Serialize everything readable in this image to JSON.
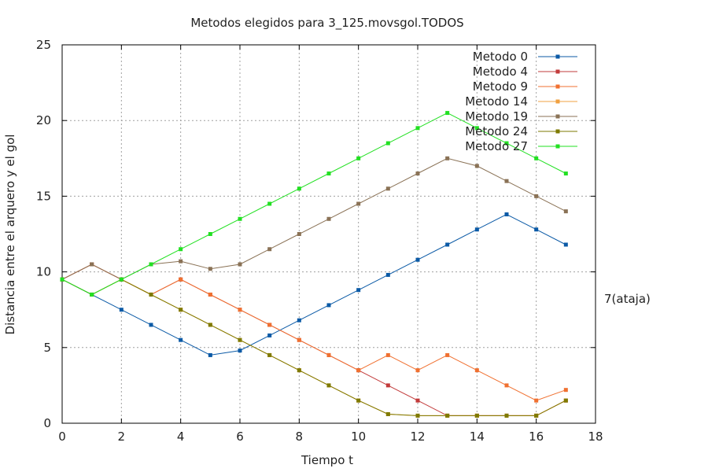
{
  "chart_data": {
    "type": "line",
    "title": "Metodos elegidos para 3_125.movsgol.TODOS",
    "xlabel": "Tiempo t",
    "ylabel": "Distancia entre el arquero y el gol",
    "xlim": [
      0,
      18
    ],
    "ylim": [
      0,
      25
    ],
    "xticks": [
      0,
      2,
      4,
      6,
      8,
      10,
      12,
      14,
      16,
      18
    ],
    "yticks": [
      0,
      5,
      10,
      15,
      20,
      25
    ],
    "grid": true,
    "legend_position": "top-right",
    "right_label": {
      "text": "7(ataja)",
      "y": 8.2
    },
    "series": [
      {
        "name": "Metodo 0",
        "color": "#0b5aa6",
        "x": [
          0,
          1,
          2,
          3,
          4,
          5,
          6,
          7,
          8,
          9,
          10,
          11,
          12,
          13,
          14,
          15,
          16,
          17
        ],
        "y": [
          9.5,
          8.5,
          7.5,
          6.5,
          5.5,
          4.5,
          4.8,
          5.8,
          6.8,
          7.8,
          8.8,
          9.8,
          10.8,
          11.8,
          12.8,
          13.8,
          12.8,
          11.8
        ]
      },
      {
        "name": "Metodo 4",
        "color": "#c23b3b",
        "x": [
          0,
          1,
          2,
          3,
          4,
          5,
          6,
          7,
          8,
          9,
          10,
          11,
          12,
          13,
          14,
          15,
          16,
          17
        ],
        "y": [
          9.5,
          10.5,
          9.5,
          8.5,
          9.5,
          8.5,
          7.5,
          6.5,
          5.5,
          4.5,
          3.5,
          2.5,
          1.5,
          0.5,
          0.5,
          0.5,
          0.5,
          1.5
        ]
      },
      {
        "name": "Metodo 9",
        "color": "#f07030",
        "x": [
          0,
          1,
          2,
          3,
          4,
          5,
          6,
          7,
          8,
          9,
          10,
          11,
          12,
          13,
          14,
          15,
          16,
          17
        ],
        "y": [
          9.5,
          10.5,
          9.5,
          8.5,
          9.5,
          8.5,
          7.5,
          6.5,
          5.5,
          4.5,
          3.5,
          4.5,
          3.5,
          4.5,
          3.5,
          2.5,
          1.5,
          2.2
        ]
      },
      {
        "name": "Metodo 14",
        "color": "#f0a040",
        "x": [
          0,
          1,
          2,
          3,
          4,
          5,
          6,
          7,
          8,
          9,
          10,
          11,
          12,
          13,
          14,
          15,
          16,
          17
        ],
        "y": [
          9.5,
          8.5,
          9.5,
          8.5,
          7.5,
          6.5,
          5.5,
          4.5,
          3.5,
          2.5,
          1.5,
          0.6,
          0.5,
          0.5,
          0.5,
          0.5,
          0.5,
          1.5
        ]
      },
      {
        "name": "Metodo 19",
        "color": "#8a7256",
        "x": [
          0,
          1,
          2,
          3,
          4,
          5,
          6,
          7,
          8,
          9,
          10,
          11,
          12,
          13,
          14,
          15,
          16,
          17
        ],
        "y": [
          9.5,
          10.5,
          9.5,
          10.5,
          10.7,
          10.2,
          10.5,
          11.5,
          12.5,
          13.5,
          14.5,
          15.5,
          16.5,
          17.5,
          17.0,
          16.0,
          15.0,
          14.0
        ]
      },
      {
        "name": "Metodo 24",
        "color": "#7e7a00",
        "x": [
          0,
          1,
          2,
          3,
          4,
          5,
          6,
          7,
          8,
          9,
          10,
          11,
          12,
          13,
          14,
          15,
          16,
          17
        ],
        "y": [
          9.5,
          8.5,
          9.5,
          8.5,
          7.5,
          6.5,
          5.5,
          4.5,
          3.5,
          2.5,
          1.5,
          0.6,
          0.5,
          0.5,
          0.5,
          0.5,
          0.5,
          1.5
        ]
      },
      {
        "name": "Metodo 27",
        "color": "#22e022",
        "x": [
          0,
          1,
          2,
          3,
          4,
          5,
          6,
          7,
          8,
          9,
          10,
          11,
          12,
          13,
          14,
          15,
          16,
          17
        ],
        "y": [
          9.5,
          8.5,
          9.5,
          10.5,
          11.5,
          12.5,
          13.5,
          14.5,
          15.5,
          16.5,
          17.5,
          18.5,
          19.5,
          20.5,
          19.5,
          18.5,
          17.5,
          16.5
        ]
      }
    ]
  }
}
